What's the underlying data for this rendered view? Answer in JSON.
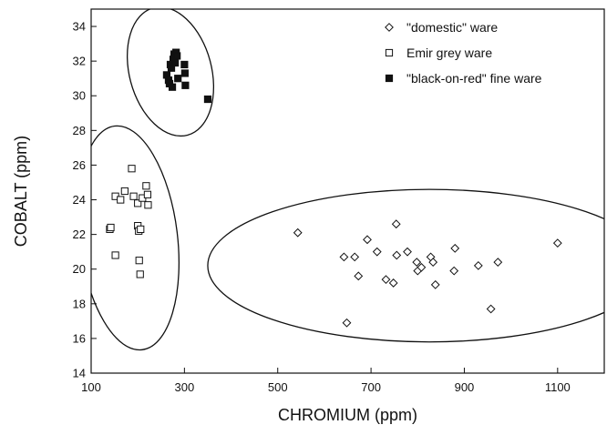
{
  "chart_data": {
    "type": "scatter",
    "title": "",
    "xlabel": "CHROMIUM (ppm)",
    "ylabel": "COBALT (ppm)",
    "xlim": [
      100,
      1200
    ],
    "ylim": [
      14,
      35
    ],
    "xticks": [
      100,
      300,
      500,
      700,
      900,
      1100
    ],
    "yticks": [
      14,
      16,
      18,
      20,
      22,
      24,
      26,
      28,
      30,
      32,
      34
    ],
    "grid": false,
    "legend_position": "top-right",
    "series": [
      {
        "name": "\"domestic\" ware",
        "marker": "open-diamond",
        "points": [
          {
            "x": 543,
            "y": 22.1
          },
          {
            "x": 642,
            "y": 20.7
          },
          {
            "x": 648,
            "y": 16.9
          },
          {
            "x": 665,
            "y": 20.7
          },
          {
            "x": 673,
            "y": 19.6
          },
          {
            "x": 692,
            "y": 21.7
          },
          {
            "x": 713,
            "y": 21.0
          },
          {
            "x": 732,
            "y": 19.4
          },
          {
            "x": 748,
            "y": 19.2
          },
          {
            "x": 754,
            "y": 22.6
          },
          {
            "x": 755,
            "y": 20.8
          },
          {
            "x": 778,
            "y": 21.0
          },
          {
            "x": 798,
            "y": 20.4
          },
          {
            "x": 800,
            "y": 19.9
          },
          {
            "x": 808,
            "y": 20.1
          },
          {
            "x": 828,
            "y": 20.7
          },
          {
            "x": 833,
            "y": 20.4
          },
          {
            "x": 838,
            "y": 19.1
          },
          {
            "x": 878,
            "y": 19.9
          },
          {
            "x": 880,
            "y": 21.2
          },
          {
            "x": 930,
            "y": 20.2
          },
          {
            "x": 957,
            "y": 17.7
          },
          {
            "x": 972,
            "y": 20.4
          },
          {
            "x": 1100,
            "y": 21.5
          }
        ]
      },
      {
        "name": "Emir grey ware",
        "marker": "open-square",
        "points": [
          {
            "x": 140,
            "y": 22.3
          },
          {
            "x": 142,
            "y": 22.4
          },
          {
            "x": 152,
            "y": 24.2
          },
          {
            "x": 152,
            "y": 20.8
          },
          {
            "x": 163,
            "y": 24.0
          },
          {
            "x": 172,
            "y": 24.5
          },
          {
            "x": 187,
            "y": 25.8
          },
          {
            "x": 191,
            "y": 24.2
          },
          {
            "x": 200,
            "y": 23.8
          },
          {
            "x": 200,
            "y": 22.5
          },
          {
            "x": 202,
            "y": 22.2
          },
          {
            "x": 203,
            "y": 20.5
          },
          {
            "x": 205,
            "y": 19.7
          },
          {
            "x": 206,
            "y": 22.3
          },
          {
            "x": 210,
            "y": 24.1
          },
          {
            "x": 218,
            "y": 24.8
          },
          {
            "x": 221,
            "y": 24.3
          },
          {
            "x": 222,
            "y": 23.7
          }
        ]
      },
      {
        "name": "\"black-on-red\" fine ware",
        "marker": "filled-square",
        "points": [
          {
            "x": 262,
            "y": 31.2
          },
          {
            "x": 266,
            "y": 30.9
          },
          {
            "x": 268,
            "y": 30.7
          },
          {
            "x": 270,
            "y": 31.8
          },
          {
            "x": 272,
            "y": 31.6
          },
          {
            "x": 274,
            "y": 30.5
          },
          {
            "x": 276,
            "y": 32.1
          },
          {
            "x": 278,
            "y": 32.4
          },
          {
            "x": 280,
            "y": 31.9
          },
          {
            "x": 282,
            "y": 32.5
          },
          {
            "x": 284,
            "y": 32.3
          },
          {
            "x": 286,
            "y": 31.0
          },
          {
            "x": 300,
            "y": 31.8
          },
          {
            "x": 301,
            "y": 31.3
          },
          {
            "x": 302,
            "y": 30.6
          },
          {
            "x": 350,
            "y": 29.8
          }
        ]
      }
    ],
    "annotations": [
      {
        "shape": "ellipse",
        "encloses": "\"black-on-red\" fine ware",
        "cx": 270,
        "cy": 31.4,
        "rx": 88,
        "ry": 3.8,
        "rotation_deg": -15
      },
      {
        "shape": "ellipse",
        "encloses": "Emir grey ware",
        "cx": 180,
        "cy": 21.8,
        "rx": 105,
        "ry": 6.5,
        "rotation_deg": -7
      },
      {
        "shape": "ellipse",
        "encloses": "\"domestic\" ware",
        "cx": 825,
        "cy": 20.2,
        "rx": 475,
        "ry": 4.4,
        "rotation_deg": 0
      }
    ]
  }
}
